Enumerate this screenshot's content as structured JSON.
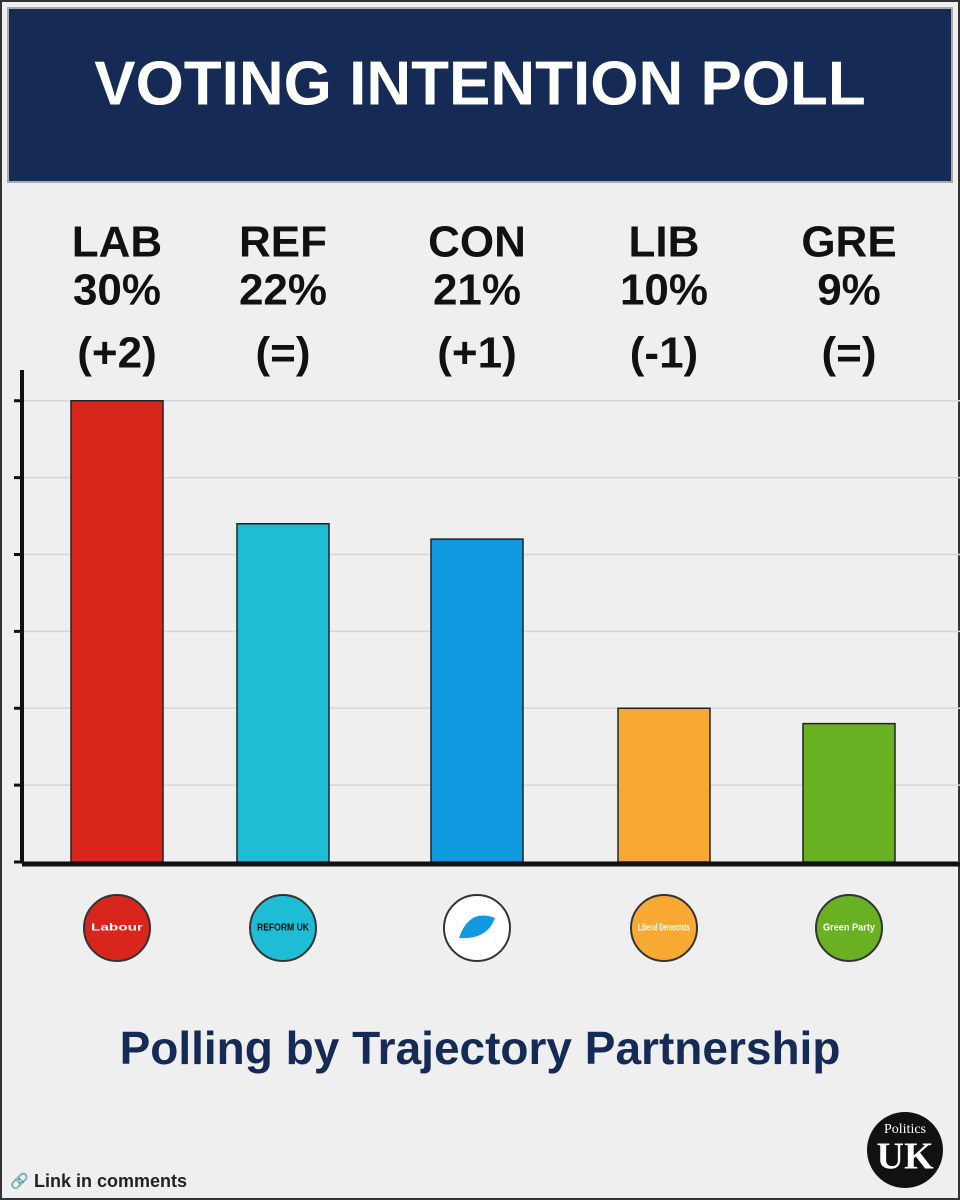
{
  "chart_data": {
    "type": "bar",
    "title": "VOTING INTENTION POLL",
    "subtitle": "Polling by Trajectory Partnership",
    "categories": [
      "LAB",
      "REF",
      "CON",
      "LIB",
      "GRE"
    ],
    "values": [
      30,
      22,
      21,
      10,
      9
    ],
    "value_labels": [
      "30%",
      "22%",
      "21%",
      "10%",
      "9%"
    ],
    "changes": [
      "(+2)",
      "(=)",
      "(+1)",
      "(-1)",
      "(=)"
    ],
    "colors": [
      "#d9261c",
      "#1fbcd6",
      "#0f9ae0",
      "#f8a934",
      "#6ab023"
    ],
    "logos": [
      "Labour",
      "REFORM UK",
      null,
      "Liberal Democrats",
      "Green Party"
    ],
    "ylim": [
      0,
      32
    ],
    "yticks": [
      0,
      5,
      10,
      15,
      20,
      25,
      30
    ],
    "grid": true
  },
  "footer": {
    "link": "Link in comments",
    "brand_top": "Politics",
    "brand_bottom": "UK"
  }
}
